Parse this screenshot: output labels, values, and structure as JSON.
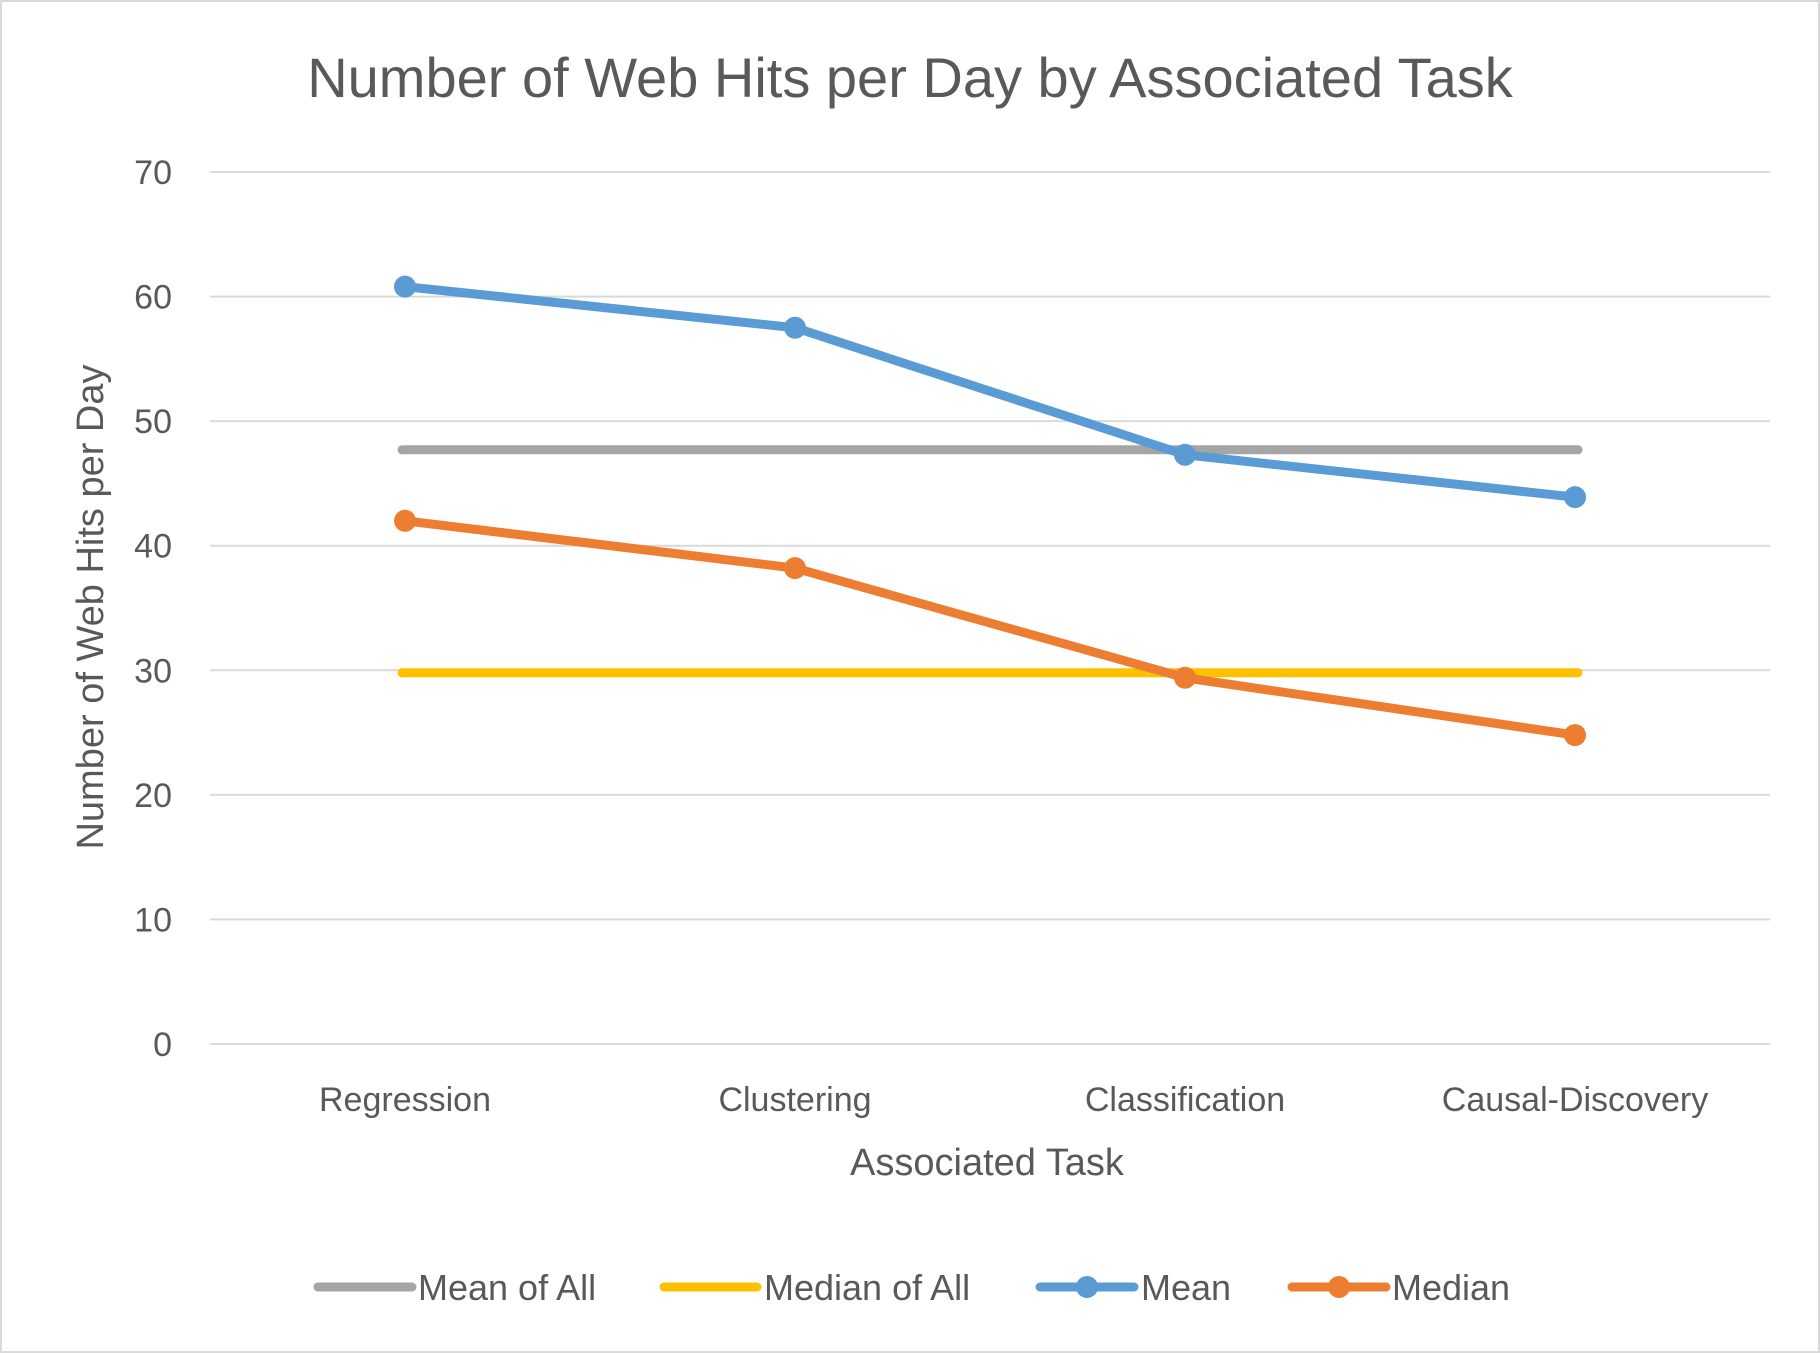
{
  "chart_data": {
    "type": "line",
    "title": "Number of Web Hits per Day by Associated Task",
    "xlabel": "Associated Task",
    "ylabel": "Number of Web Hits per Day",
    "categories": [
      "Regression",
      "Clustering",
      "Classification",
      "Causal-Discovery"
    ],
    "ylim": [
      0,
      70
    ],
    "yticks": [
      0,
      10,
      20,
      30,
      40,
      50,
      60,
      70
    ],
    "grid": true,
    "legend_position": "bottom",
    "series": [
      {
        "name": "Mean of All",
        "values": [
          47.7,
          47.7,
          47.7,
          47.7
        ],
        "color": "#a5a5a5",
        "markers": false
      },
      {
        "name": "Median of All",
        "values": [
          29.8,
          29.8,
          29.8,
          29.8
        ],
        "color": "#ffc000",
        "markers": false
      },
      {
        "name": "Mean",
        "values": [
          60.8,
          57.5,
          47.3,
          43.9
        ],
        "color": "#5b9bd5",
        "markers": true
      },
      {
        "name": "Median",
        "values": [
          42.0,
          38.2,
          29.4,
          24.8
        ],
        "color": "#ed7d31",
        "markers": true
      }
    ]
  }
}
